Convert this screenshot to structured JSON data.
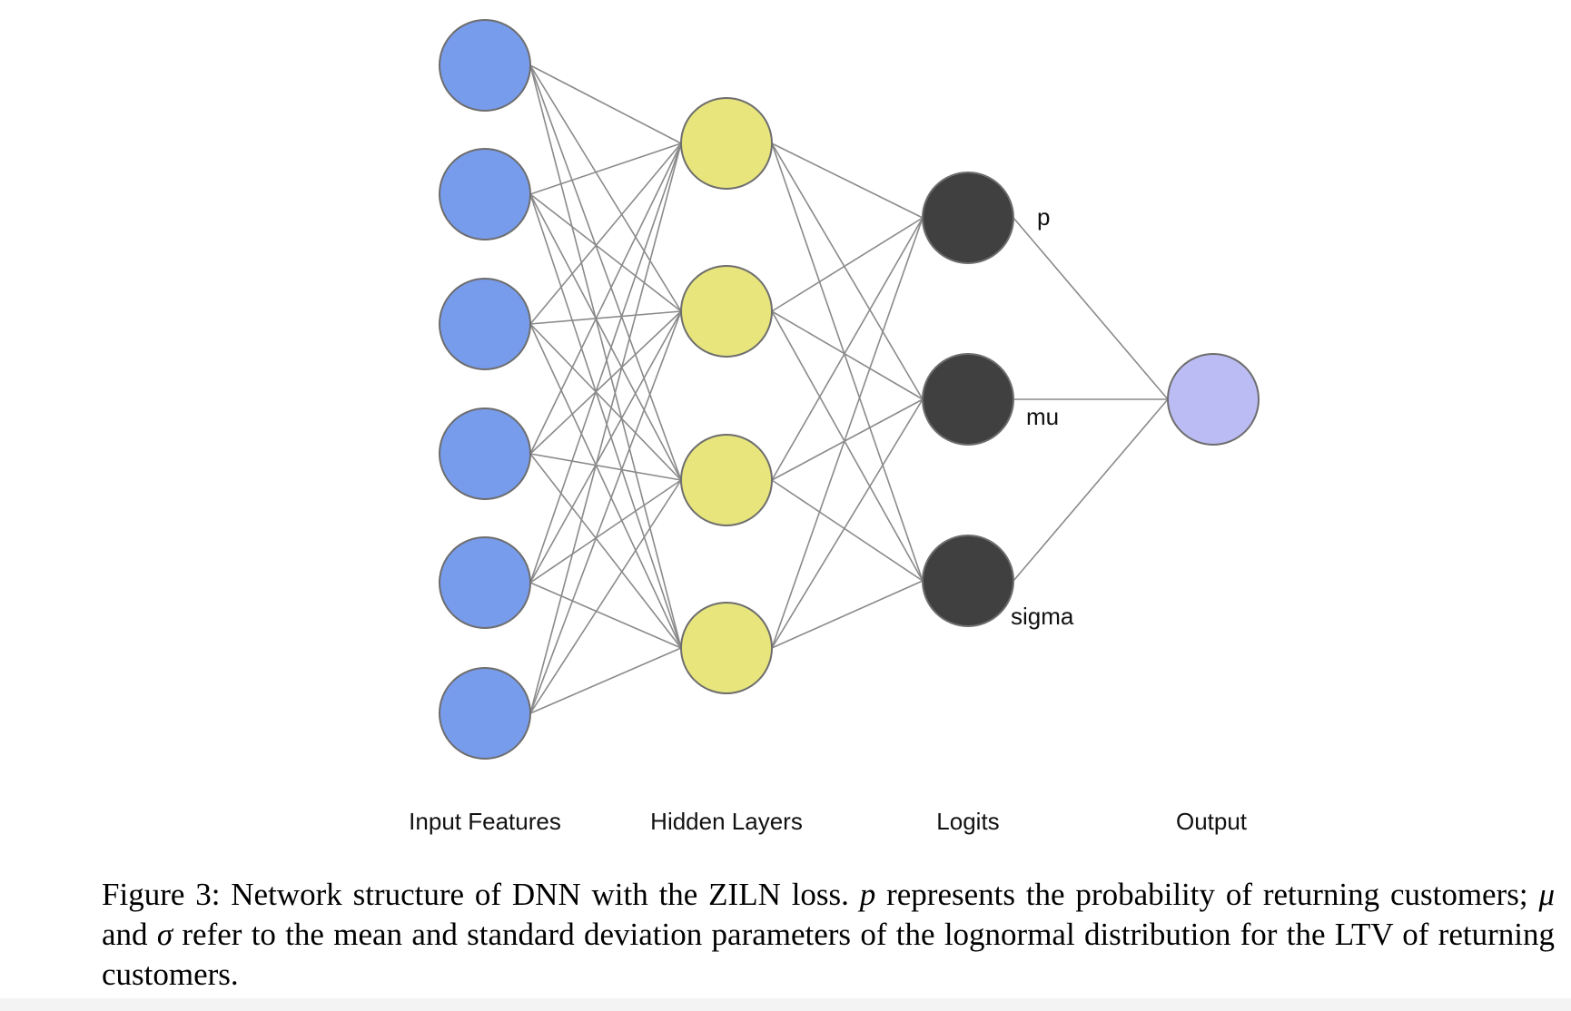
{
  "layers": {
    "input": {
      "label": "Input Features",
      "count": 6,
      "color": "#789cec"
    },
    "hidden": {
      "label": "Hidden Layers",
      "count": 4,
      "color": "#e8e57d"
    },
    "logits": {
      "label": "Logits",
      "count": 3,
      "color": "#404040",
      "node_labels": [
        "p",
        "mu",
        "sigma"
      ]
    },
    "output": {
      "label": "Output",
      "count": 1,
      "color": "#bcbcf5"
    }
  },
  "colors": {
    "edge": "#8a8a8a",
    "node_stroke": "#6d6d6d"
  },
  "caption": {
    "prefix": "Figure 3: Network structure of DNN with the ZILN loss. ",
    "p_symbol": "p",
    "middle_1": " represents the probability of returning customers; ",
    "mu_symbol": "μ",
    "middle_2": " and ",
    "sigma_symbol": "σ",
    "suffix": " refer to the mean and standard deviation parameters of the lognormal distribution for the LTV of returning customers."
  }
}
